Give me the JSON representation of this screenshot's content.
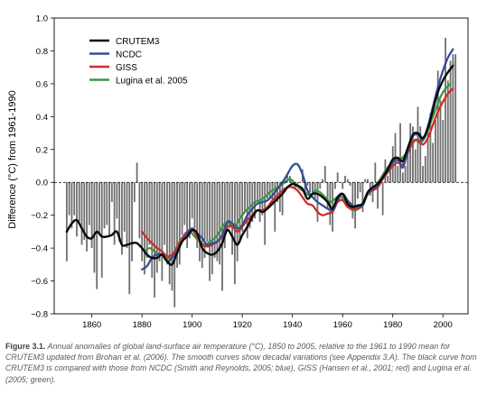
{
  "chart_data": {
    "type": "line",
    "ylabel": "Difference (°C) from 1961-1990",
    "xlabel": "",
    "xlim": [
      1845,
      2010
    ],
    "ylim": [
      -0.8,
      1.0
    ],
    "x_ticks": [
      1860,
      1880,
      1900,
      1920,
      1940,
      1960,
      1980,
      2000
    ],
    "y_ticks": [
      -0.8,
      -0.6,
      -0.4,
      -0.2,
      0.0,
      0.2,
      0.4,
      0.6,
      0.8,
      1.0
    ],
    "y_tick_labels": [
      "−0.8",
      "−0.6",
      "−0.4",
      "−0.2",
      "0.0",
      "0.2",
      "0.4",
      "0.6",
      "0.8",
      "1.0"
    ],
    "legend_position": "top-left",
    "annual_bars": {
      "name": "",
      "color": "#6f6f6f",
      "x": [
        1850,
        1851,
        1852,
        1853,
        1854,
        1855,
        1856,
        1857,
        1858,
        1859,
        1860,
        1861,
        1862,
        1863,
        1864,
        1865,
        1866,
        1867,
        1868,
        1869,
        1870,
        1871,
        1872,
        1873,
        1874,
        1875,
        1876,
        1877,
        1878,
        1879,
        1880,
        1881,
        1882,
        1883,
        1884,
        1885,
        1886,
        1887,
        1888,
        1889,
        1890,
        1891,
        1892,
        1893,
        1894,
        1895,
        1896,
        1897,
        1898,
        1899,
        1900,
        1901,
        1902,
        1903,
        1904,
        1905,
        1906,
        1907,
        1908,
        1909,
        1910,
        1911,
        1912,
        1913,
        1914,
        1915,
        1916,
        1917,
        1918,
        1919,
        1920,
        1921,
        1922,
        1923,
        1924,
        1925,
        1926,
        1927,
        1928,
        1929,
        1930,
        1931,
        1932,
        1933,
        1934,
        1935,
        1936,
        1937,
        1938,
        1939,
        1940,
        1941,
        1942,
        1943,
        1944,
        1945,
        1946,
        1947,
        1948,
        1949,
        1950,
        1951,
        1952,
        1953,
        1954,
        1955,
        1956,
        1957,
        1958,
        1959,
        1960,
        1961,
        1962,
        1963,
        1964,
        1965,
        1966,
        1967,
        1968,
        1969,
        1970,
        1971,
        1972,
        1973,
        1974,
        1975,
        1976,
        1977,
        1978,
        1979,
        1980,
        1981,
        1982,
        1983,
        1984,
        1985,
        1986,
        1987,
        1988,
        1989,
        1990,
        1991,
        1992,
        1993,
        1994,
        1995,
        1996,
        1997,
        1998,
        1999,
        2000,
        2001,
        2002,
        2003,
        2004,
        2005
      ],
      "values": [
        -0.48,
        -0.2,
        -0.28,
        -0.2,
        -0.33,
        -0.24,
        -0.38,
        -0.35,
        -0.42,
        -0.26,
        -0.4,
        -0.55,
        -0.65,
        -0.32,
        -0.58,
        -0.28,
        -0.26,
        -0.32,
        -0.12,
        -0.38,
        -0.22,
        -0.36,
        -0.44,
        -0.3,
        -0.4,
        -0.68,
        -0.48,
        -0.12,
        0.12,
        -0.34,
        -0.48,
        -0.56,
        -0.46,
        -0.38,
        -0.58,
        -0.7,
        -0.55,
        -0.48,
        -0.6,
        -0.38,
        -0.5,
        -0.62,
        -0.66,
        -0.76,
        -0.52,
        -0.5,
        -0.32,
        -0.26,
        -0.4,
        -0.34,
        -0.22,
        -0.28,
        -0.4,
        -0.48,
        -0.52,
        -0.46,
        -0.36,
        -0.6,
        -0.56,
        -0.46,
        -0.48,
        -0.5,
        -0.66,
        -0.4,
        -0.3,
        -0.28,
        -0.44,
        -0.62,
        -0.48,
        -0.36,
        -0.3,
        -0.18,
        -0.34,
        -0.28,
        -0.24,
        -0.22,
        -0.12,
        -0.24,
        -0.2,
        -0.38,
        -0.1,
        -0.1,
        -0.14,
        -0.3,
        -0.12,
        -0.18,
        -0.2,
        0.02,
        0.04,
        0.04,
        0.02,
        -0.04,
        -0.02,
        0.0,
        0.08,
        -0.06,
        -0.02,
        -0.06,
        -0.08,
        -0.1,
        -0.24,
        -0.04,
        0.02,
        0.1,
        -0.16,
        -0.26,
        -0.3,
        -0.04,
        0.06,
        0.0,
        -0.04,
        0.04,
        0.02,
        -0.02,
        -0.22,
        -0.28,
        -0.1,
        -0.06,
        -0.18,
        0.02,
        0.02,
        -0.08,
        -0.12,
        0.12,
        -0.16,
        0.0,
        -0.2,
        0.14,
        0.04,
        0.08,
        0.22,
        0.3,
        0.1,
        0.36,
        0.06,
        0.1,
        0.18,
        0.36,
        0.34,
        0.2,
        0.46,
        0.34,
        0.1,
        0.16,
        0.34,
        0.42,
        0.24,
        0.38,
        0.68,
        0.5,
        0.38,
        0.88,
        0.62,
        0.74,
        0.78,
        0.78
      ]
    },
    "series": [
      {
        "name": "CRUTEM3",
        "color": "#0a0a0a",
        "x": [
          1850,
          1852,
          1854,
          1856,
          1858,
          1860,
          1862,
          1864,
          1866,
          1868,
          1870,
          1872,
          1874,
          1876,
          1878,
          1880,
          1882,
          1884,
          1886,
          1888,
          1890,
          1892,
          1894,
          1896,
          1898,
          1900,
          1902,
          1904,
          1906,
          1908,
          1910,
          1912,
          1914,
          1916,
          1918,
          1920,
          1922,
          1924,
          1926,
          1928,
          1930,
          1932,
          1934,
          1936,
          1938,
          1940,
          1942,
          1944,
          1946,
          1948,
          1950,
          1952,
          1954,
          1956,
          1958,
          1960,
          1962,
          1964,
          1966,
          1968,
          1970,
          1972,
          1974,
          1976,
          1978,
          1980,
          1982,
          1984,
          1986,
          1988,
          1990,
          1992,
          1994,
          1996,
          1998,
          2000,
          2002,
          2004
        ],
        "values": [
          -0.3,
          -0.25,
          -0.23,
          -0.28,
          -0.33,
          -0.34,
          -0.3,
          -0.33,
          -0.33,
          -0.32,
          -0.3,
          -0.38,
          -0.38,
          -0.37,
          -0.37,
          -0.4,
          -0.44,
          -0.46,
          -0.46,
          -0.44,
          -0.48,
          -0.5,
          -0.43,
          -0.36,
          -0.33,
          -0.29,
          -0.31,
          -0.4,
          -0.43,
          -0.44,
          -0.42,
          -0.37,
          -0.29,
          -0.33,
          -0.38,
          -0.32,
          -0.27,
          -0.21,
          -0.17,
          -0.18,
          -0.16,
          -0.13,
          -0.1,
          -0.07,
          -0.03,
          -0.01,
          -0.02,
          -0.04,
          -0.1,
          -0.07,
          -0.07,
          -0.09,
          -0.12,
          -0.16,
          -0.09,
          -0.07,
          -0.13,
          -0.15,
          -0.14,
          -0.13,
          -0.06,
          -0.03,
          -0.01,
          0.03,
          0.08,
          0.14,
          0.15,
          0.13,
          0.21,
          0.29,
          0.3,
          0.27,
          0.33,
          0.44,
          0.55,
          0.62,
          0.67,
          0.71
        ]
      },
      {
        "name": "NCDC",
        "color": "#334e9a",
        "x": [
          1880,
          1882,
          1884,
          1886,
          1888,
          1890,
          1892,
          1894,
          1896,
          1898,
          1900,
          1902,
          1904,
          1906,
          1908,
          1910,
          1912,
          1914,
          1916,
          1918,
          1920,
          1922,
          1924,
          1926,
          1928,
          1930,
          1932,
          1934,
          1936,
          1938,
          1940,
          1942,
          1944,
          1946,
          1948,
          1950,
          1952,
          1954,
          1956,
          1958,
          1960,
          1962,
          1964,
          1966,
          1968,
          1970,
          1972,
          1974,
          1976,
          1978,
          1980,
          1982,
          1984,
          1986,
          1988,
          1990,
          1992,
          1994,
          1996,
          1998,
          2000,
          2002,
          2004
        ],
        "values": [
          -0.53,
          -0.51,
          -0.46,
          -0.44,
          -0.44,
          -0.48,
          -0.46,
          -0.42,
          -0.36,
          -0.31,
          -0.28,
          -0.31,
          -0.34,
          -0.38,
          -0.37,
          -0.36,
          -0.32,
          -0.24,
          -0.25,
          -0.28,
          -0.26,
          -0.2,
          -0.16,
          -0.13,
          -0.12,
          -0.11,
          -0.08,
          -0.04,
          0.0,
          0.05,
          0.1,
          0.11,
          0.05,
          -0.05,
          -0.09,
          -0.12,
          -0.14,
          -0.16,
          -0.17,
          -0.11,
          -0.07,
          -0.11,
          -0.14,
          -0.15,
          -0.14,
          -0.07,
          -0.04,
          -0.02,
          0.03,
          0.07,
          0.12,
          0.14,
          0.09,
          0.19,
          0.28,
          0.29,
          0.26,
          0.34,
          0.46,
          0.58,
          0.68,
          0.76,
          0.81
        ]
      },
      {
        "name": "GISS",
        "color": "#d52b26",
        "x": [
          1880,
          1882,
          1884,
          1886,
          1888,
          1890,
          1892,
          1894,
          1896,
          1898,
          1900,
          1902,
          1904,
          1906,
          1908,
          1910,
          1912,
          1914,
          1916,
          1918,
          1920,
          1922,
          1924,
          1926,
          1928,
          1930,
          1932,
          1934,
          1936,
          1938,
          1940,
          1942,
          1944,
          1946,
          1948,
          1950,
          1952,
          1954,
          1956,
          1958,
          1960,
          1962,
          1964,
          1966,
          1968,
          1970,
          1972,
          1974,
          1976,
          1978,
          1980,
          1982,
          1984,
          1986,
          1988,
          1990,
          1992,
          1994,
          1996,
          1998,
          2000,
          2002,
          2004
        ],
        "values": [
          -0.3,
          -0.34,
          -0.37,
          -0.4,
          -0.42,
          -0.45,
          -0.44,
          -0.4,
          -0.34,
          -0.3,
          -0.29,
          -0.33,
          -0.38,
          -0.39,
          -0.38,
          -0.36,
          -0.33,
          -0.27,
          -0.27,
          -0.3,
          -0.27,
          -0.23,
          -0.2,
          -0.17,
          -0.17,
          -0.15,
          -0.11,
          -0.08,
          -0.05,
          -0.03,
          -0.03,
          -0.05,
          -0.09,
          -0.13,
          -0.14,
          -0.18,
          -0.2,
          -0.19,
          -0.18,
          -0.12,
          -0.11,
          -0.15,
          -0.16,
          -0.16,
          -0.14,
          -0.07,
          -0.05,
          -0.03,
          0.02,
          0.06,
          0.1,
          0.12,
          0.11,
          0.18,
          0.24,
          0.26,
          0.23,
          0.27,
          0.35,
          0.43,
          0.49,
          0.54,
          0.57
        ]
      },
      {
        "name": "Lugina et al. 2005",
        "color": "#3d9640",
        "x": [
          1881,
          1883,
          1885,
          1887,
          1889,
          1891,
          1893,
          1895,
          1897,
          1899,
          1901,
          1903,
          1905,
          1907,
          1909,
          1911,
          1913,
          1915,
          1917,
          1919,
          1921,
          1923,
          1925,
          1927,
          1929,
          1931,
          1933,
          1935,
          1937,
          1939,
          1941,
          1943,
          1945,
          1947,
          1949,
          1951,
          1953,
          1955,
          1957,
          1959,
          1961,
          1963,
          1965,
          1967,
          1969,
          1971,
          1973,
          1975,
          1977,
          1979,
          1981,
          1983,
          1985,
          1987,
          1989,
          1991,
          1993,
          1995,
          1997,
          1999,
          2001,
          2003
        ],
        "values": [
          -0.42,
          -0.4,
          -0.42,
          -0.44,
          -0.45,
          -0.46,
          -0.42,
          -0.36,
          -0.32,
          -0.3,
          -0.33,
          -0.36,
          -0.38,
          -0.36,
          -0.34,
          -0.3,
          -0.25,
          -0.25,
          -0.27,
          -0.22,
          -0.18,
          -0.15,
          -0.12,
          -0.11,
          -0.09,
          -0.06,
          -0.04,
          -0.02,
          0.0,
          0.02,
          -0.01,
          -0.04,
          -0.06,
          -0.08,
          -0.05,
          -0.06,
          -0.09,
          -0.12,
          -0.1,
          -0.08,
          -0.12,
          -0.16,
          -0.17,
          -0.15,
          -0.1,
          -0.05,
          -0.02,
          0.02,
          0.07,
          0.11,
          0.13,
          0.14,
          0.17,
          0.23,
          0.26,
          0.24,
          0.28,
          0.36,
          0.44,
          0.52,
          0.57,
          0.6
        ]
      }
    ]
  },
  "caption": {
    "label": "Figure 3.1.",
    "text": " Annual anomalies of global land-surface air temperature (°C), 1850 to 2005, relative to the 1961 to 1990 mean for CRUTEM3 updated from Brohan et al. (2006). The smooth curves show decadal variations (see Appendix 3.A). The black curve from CRUTEM3 is compared with those from NCDC (Smith and Reynolds, 2005; blue), GISS (Hansen et al., 2001; red) and Lugina et al. (2005; green)."
  }
}
